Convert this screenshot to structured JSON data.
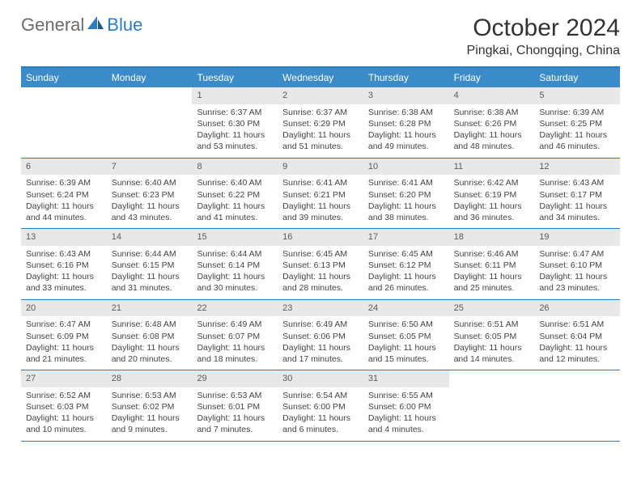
{
  "logo": {
    "text1": "General",
    "text2": "Blue"
  },
  "title": "October 2024",
  "location": "Pingkai, Chongqing, China",
  "colors": {
    "header_bg": "#3b8bc9",
    "border": "#2d7cc0",
    "daynum_bg": "#e8e8e8",
    "text": "#333333",
    "logo_gray": "#6b6b6b",
    "logo_blue": "#2d7cc0"
  },
  "weekdays": [
    "Sunday",
    "Monday",
    "Tuesday",
    "Wednesday",
    "Thursday",
    "Friday",
    "Saturday"
  ],
  "weeks": [
    [
      {
        "n": "",
        "sr": "",
        "ss": "",
        "dl": ""
      },
      {
        "n": "",
        "sr": "",
        "ss": "",
        "dl": ""
      },
      {
        "n": "1",
        "sr": "Sunrise: 6:37 AM",
        "ss": "Sunset: 6:30 PM",
        "dl": "Daylight: 11 hours and 53 minutes."
      },
      {
        "n": "2",
        "sr": "Sunrise: 6:37 AM",
        "ss": "Sunset: 6:29 PM",
        "dl": "Daylight: 11 hours and 51 minutes."
      },
      {
        "n": "3",
        "sr": "Sunrise: 6:38 AM",
        "ss": "Sunset: 6:28 PM",
        "dl": "Daylight: 11 hours and 49 minutes."
      },
      {
        "n": "4",
        "sr": "Sunrise: 6:38 AM",
        "ss": "Sunset: 6:26 PM",
        "dl": "Daylight: 11 hours and 48 minutes."
      },
      {
        "n": "5",
        "sr": "Sunrise: 6:39 AM",
        "ss": "Sunset: 6:25 PM",
        "dl": "Daylight: 11 hours and 46 minutes."
      }
    ],
    [
      {
        "n": "6",
        "sr": "Sunrise: 6:39 AM",
        "ss": "Sunset: 6:24 PM",
        "dl": "Daylight: 11 hours and 44 minutes."
      },
      {
        "n": "7",
        "sr": "Sunrise: 6:40 AM",
        "ss": "Sunset: 6:23 PM",
        "dl": "Daylight: 11 hours and 43 minutes."
      },
      {
        "n": "8",
        "sr": "Sunrise: 6:40 AM",
        "ss": "Sunset: 6:22 PM",
        "dl": "Daylight: 11 hours and 41 minutes."
      },
      {
        "n": "9",
        "sr": "Sunrise: 6:41 AM",
        "ss": "Sunset: 6:21 PM",
        "dl": "Daylight: 11 hours and 39 minutes."
      },
      {
        "n": "10",
        "sr": "Sunrise: 6:41 AM",
        "ss": "Sunset: 6:20 PM",
        "dl": "Daylight: 11 hours and 38 minutes."
      },
      {
        "n": "11",
        "sr": "Sunrise: 6:42 AM",
        "ss": "Sunset: 6:19 PM",
        "dl": "Daylight: 11 hours and 36 minutes."
      },
      {
        "n": "12",
        "sr": "Sunrise: 6:43 AM",
        "ss": "Sunset: 6:17 PM",
        "dl": "Daylight: 11 hours and 34 minutes."
      }
    ],
    [
      {
        "n": "13",
        "sr": "Sunrise: 6:43 AM",
        "ss": "Sunset: 6:16 PM",
        "dl": "Daylight: 11 hours and 33 minutes."
      },
      {
        "n": "14",
        "sr": "Sunrise: 6:44 AM",
        "ss": "Sunset: 6:15 PM",
        "dl": "Daylight: 11 hours and 31 minutes."
      },
      {
        "n": "15",
        "sr": "Sunrise: 6:44 AM",
        "ss": "Sunset: 6:14 PM",
        "dl": "Daylight: 11 hours and 30 minutes."
      },
      {
        "n": "16",
        "sr": "Sunrise: 6:45 AM",
        "ss": "Sunset: 6:13 PM",
        "dl": "Daylight: 11 hours and 28 minutes."
      },
      {
        "n": "17",
        "sr": "Sunrise: 6:45 AM",
        "ss": "Sunset: 6:12 PM",
        "dl": "Daylight: 11 hours and 26 minutes."
      },
      {
        "n": "18",
        "sr": "Sunrise: 6:46 AM",
        "ss": "Sunset: 6:11 PM",
        "dl": "Daylight: 11 hours and 25 minutes."
      },
      {
        "n": "19",
        "sr": "Sunrise: 6:47 AM",
        "ss": "Sunset: 6:10 PM",
        "dl": "Daylight: 11 hours and 23 minutes."
      }
    ],
    [
      {
        "n": "20",
        "sr": "Sunrise: 6:47 AM",
        "ss": "Sunset: 6:09 PM",
        "dl": "Daylight: 11 hours and 21 minutes."
      },
      {
        "n": "21",
        "sr": "Sunrise: 6:48 AM",
        "ss": "Sunset: 6:08 PM",
        "dl": "Daylight: 11 hours and 20 minutes."
      },
      {
        "n": "22",
        "sr": "Sunrise: 6:49 AM",
        "ss": "Sunset: 6:07 PM",
        "dl": "Daylight: 11 hours and 18 minutes."
      },
      {
        "n": "23",
        "sr": "Sunrise: 6:49 AM",
        "ss": "Sunset: 6:06 PM",
        "dl": "Daylight: 11 hours and 17 minutes."
      },
      {
        "n": "24",
        "sr": "Sunrise: 6:50 AM",
        "ss": "Sunset: 6:05 PM",
        "dl": "Daylight: 11 hours and 15 minutes."
      },
      {
        "n": "25",
        "sr": "Sunrise: 6:51 AM",
        "ss": "Sunset: 6:05 PM",
        "dl": "Daylight: 11 hours and 14 minutes."
      },
      {
        "n": "26",
        "sr": "Sunrise: 6:51 AM",
        "ss": "Sunset: 6:04 PM",
        "dl": "Daylight: 11 hours and 12 minutes."
      }
    ],
    [
      {
        "n": "27",
        "sr": "Sunrise: 6:52 AM",
        "ss": "Sunset: 6:03 PM",
        "dl": "Daylight: 11 hours and 10 minutes."
      },
      {
        "n": "28",
        "sr": "Sunrise: 6:53 AM",
        "ss": "Sunset: 6:02 PM",
        "dl": "Daylight: 11 hours and 9 minutes."
      },
      {
        "n": "29",
        "sr": "Sunrise: 6:53 AM",
        "ss": "Sunset: 6:01 PM",
        "dl": "Daylight: 11 hours and 7 minutes."
      },
      {
        "n": "30",
        "sr": "Sunrise: 6:54 AM",
        "ss": "Sunset: 6:00 PM",
        "dl": "Daylight: 11 hours and 6 minutes."
      },
      {
        "n": "31",
        "sr": "Sunrise: 6:55 AM",
        "ss": "Sunset: 6:00 PM",
        "dl": "Daylight: 11 hours and 4 minutes."
      },
      {
        "n": "",
        "sr": "",
        "ss": "",
        "dl": ""
      },
      {
        "n": "",
        "sr": "",
        "ss": "",
        "dl": ""
      }
    ]
  ]
}
